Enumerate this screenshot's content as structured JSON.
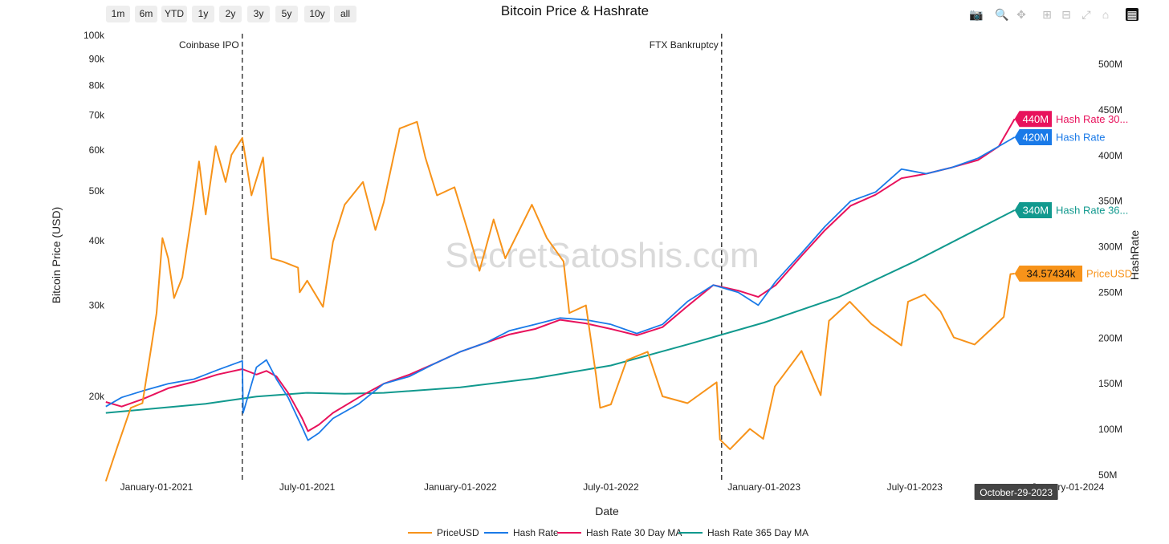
{
  "range_buttons": [
    "1m",
    "6m",
    "YTD",
    "1y",
    "2y",
    "3y",
    "5y",
    "10y",
    "all"
  ],
  "modebar_icons": [
    "camera-icon",
    "zoom-icon",
    "pan-icon",
    "zoom-in-icon",
    "zoom-out-icon",
    "autoscale-icon",
    "home-icon",
    "plotly-logo-icon"
  ],
  "watermark": "SecretSatoshis.com",
  "hover_date": "October-29-2023",
  "chart_data": {
    "type": "line",
    "title": "Bitcoin Price & Hashrate",
    "xlabel": "Date",
    "ylabel": "Bitcoin Price (USD)",
    "y2label": "HashRate",
    "y_scale": "log",
    "x_ticks": [
      "2021-01-01",
      "2021-07-01",
      "2022-01-01",
      "2022-07-01",
      "2023-01-01",
      "2023-07-01",
      "2024-01-01"
    ],
    "x_tick_labels": [
      "January-01-2021",
      "July-01-2021",
      "January-01-2022",
      "July-01-2022",
      "January-01-2023",
      "July-01-2023",
      "January-01-2024"
    ],
    "y_ticks": [
      20000,
      30000,
      40000,
      50000,
      60000,
      70000,
      80000,
      90000,
      100000
    ],
    "y_tick_labels": [
      "20k",
      "30k",
      "40k",
      "50k",
      "60k",
      "70k",
      "80k",
      "90k",
      "100k"
    ],
    "y2_ticks": [
      50,
      100,
      150,
      200,
      250,
      300,
      350,
      400,
      450,
      500
    ],
    "y2_tick_labels": [
      "50M",
      "100M",
      "150M",
      "200M",
      "250M",
      "300M",
      "350M",
      "400M",
      "450M",
      "500M"
    ],
    "annotations": [
      {
        "date": "2021-04-14",
        "text": "Coinbase IPO"
      },
      {
        "date": "2022-11-11",
        "text": "FTX Bankruptcy"
      }
    ],
    "series": [
      {
        "name": "PriceUSD",
        "color": "#f7931a",
        "axis": "y",
        "points": [
          [
            "2020-11-01",
            13700
          ],
          [
            "2020-11-15",
            16000
          ],
          [
            "2020-12-01",
            19000
          ],
          [
            "2020-12-15",
            19400
          ],
          [
            "2020-12-25",
            24500
          ],
          [
            "2021-01-01",
            29000
          ],
          [
            "2021-01-08",
            40500
          ],
          [
            "2021-01-15",
            37000
          ],
          [
            "2021-01-22",
            31000
          ],
          [
            "2021-02-01",
            34000
          ],
          [
            "2021-02-15",
            48000
          ],
          [
            "2021-02-21",
            57000
          ],
          [
            "2021-03-01",
            45000
          ],
          [
            "2021-03-13",
            61000
          ],
          [
            "2021-03-25",
            52000
          ],
          [
            "2021-04-01",
            58700
          ],
          [
            "2021-04-14",
            63300
          ],
          [
            "2021-04-25",
            49000
          ],
          [
            "2021-05-09",
            58000
          ],
          [
            "2021-05-19",
            37000
          ],
          [
            "2021-06-01",
            36500
          ],
          [
            "2021-06-20",
            35500
          ],
          [
            "2021-06-22",
            31800
          ],
          [
            "2021-07-01",
            33500
          ],
          [
            "2021-07-20",
            29800
          ],
          [
            "2021-08-01",
            39800
          ],
          [
            "2021-08-15",
            47000
          ],
          [
            "2021-09-06",
            52000
          ],
          [
            "2021-09-21",
            42000
          ],
          [
            "2021-10-01",
            47500
          ],
          [
            "2021-10-20",
            66000
          ],
          [
            "2021-11-10",
            68000
          ],
          [
            "2021-11-20",
            58000
          ],
          [
            "2021-12-04",
            49000
          ],
          [
            "2021-12-25",
            50800
          ],
          [
            "2022-01-10",
            41800
          ],
          [
            "2022-01-24",
            35000
          ],
          [
            "2022-02-10",
            44000
          ],
          [
            "2022-02-24",
            37000
          ],
          [
            "2022-03-28",
            47000
          ],
          [
            "2022-04-15",
            40500
          ],
          [
            "2022-05-05",
            36500
          ],
          [
            "2022-05-12",
            29000
          ],
          [
            "2022-06-01",
            30000
          ],
          [
            "2022-06-13",
            22000
          ],
          [
            "2022-06-18",
            19000
          ],
          [
            "2022-07-01",
            19300
          ],
          [
            "2022-07-20",
            23500
          ],
          [
            "2022-08-14",
            24400
          ],
          [
            "2022-09-01",
            20000
          ],
          [
            "2022-10-01",
            19400
          ],
          [
            "2022-11-05",
            21300
          ],
          [
            "2022-11-09",
            16500
          ],
          [
            "2022-11-21",
            15800
          ],
          [
            "2022-12-15",
            17300
          ],
          [
            "2022-12-31",
            16550
          ],
          [
            "2023-01-14",
            20900
          ],
          [
            "2023-02-15",
            24500
          ],
          [
            "2023-03-10",
            20100
          ],
          [
            "2023-03-20",
            28000
          ],
          [
            "2023-04-14",
            30500
          ],
          [
            "2023-05-10",
            27600
          ],
          [
            "2023-06-15",
            25100
          ],
          [
            "2023-06-23",
            30500
          ],
          [
            "2023-07-13",
            31500
          ],
          [
            "2023-08-01",
            29200
          ],
          [
            "2023-08-17",
            26000
          ],
          [
            "2023-09-11",
            25200
          ],
          [
            "2023-10-01",
            27000
          ],
          [
            "2023-10-16",
            28500
          ],
          [
            "2023-10-24",
            34500
          ],
          [
            "2023-10-29",
            34574
          ]
        ]
      },
      {
        "name": "Hash Rate",
        "color": "#1a7ae8",
        "axis": "y2",
        "points": [
          [
            "2020-11-01",
            125
          ],
          [
            "2020-11-20",
            135
          ],
          [
            "2020-12-15",
            142
          ],
          [
            "2021-01-15",
            150
          ],
          [
            "2021-02-15",
            155
          ],
          [
            "2021-03-15",
            165
          ],
          [
            "2021-04-14",
            175
          ],
          [
            "2021-04-15",
            118
          ],
          [
            "2021-05-01",
            168
          ],
          [
            "2021-05-13",
            176
          ],
          [
            "2021-05-25",
            155
          ],
          [
            "2021-06-08",
            135
          ],
          [
            "2021-06-25",
            102
          ],
          [
            "2021-07-02",
            88
          ],
          [
            "2021-07-15",
            96
          ],
          [
            "2021-08-01",
            112
          ],
          [
            "2021-09-01",
            128
          ],
          [
            "2021-10-01",
            150
          ],
          [
            "2021-11-01",
            158
          ],
          [
            "2021-12-01",
            172
          ],
          [
            "2022-01-01",
            185
          ],
          [
            "2022-02-01",
            195
          ],
          [
            "2022-03-01",
            208
          ],
          [
            "2022-04-01",
            215
          ],
          [
            "2022-05-01",
            222
          ],
          [
            "2022-06-01",
            220
          ],
          [
            "2022-07-01",
            215
          ],
          [
            "2022-08-01",
            205
          ],
          [
            "2022-09-01",
            215
          ],
          [
            "2022-10-01",
            240
          ],
          [
            "2022-11-01",
            258
          ],
          [
            "2022-12-01",
            250
          ],
          [
            "2022-12-25",
            236
          ],
          [
            "2023-01-15",
            262
          ],
          [
            "2023-02-15",
            293
          ],
          [
            "2023-03-15",
            322
          ],
          [
            "2023-04-15",
            350
          ],
          [
            "2023-05-15",
            360
          ],
          [
            "2023-06-15",
            385
          ],
          [
            "2023-07-15",
            380
          ],
          [
            "2023-08-15",
            387
          ],
          [
            "2023-09-15",
            397
          ],
          [
            "2023-10-10",
            410
          ],
          [
            "2023-10-29",
            420
          ]
        ]
      },
      {
        "name": "Hash Rate 30 Day MA",
        "color": "#e8125c",
        "axis": "y2",
        "points": [
          [
            "2020-11-01",
            130
          ],
          [
            "2020-11-20",
            125
          ],
          [
            "2020-12-15",
            133
          ],
          [
            "2021-01-15",
            145
          ],
          [
            "2021-02-15",
            152
          ],
          [
            "2021-03-15",
            160
          ],
          [
            "2021-04-14",
            166
          ],
          [
            "2021-05-01",
            160
          ],
          [
            "2021-05-13",
            164
          ],
          [
            "2021-05-25",
            158
          ],
          [
            "2021-06-08",
            140
          ],
          [
            "2021-06-25",
            112
          ],
          [
            "2021-07-02",
            98
          ],
          [
            "2021-07-15",
            105
          ],
          [
            "2021-08-01",
            118
          ],
          [
            "2021-09-01",
            135
          ],
          [
            "2021-10-01",
            150
          ],
          [
            "2021-11-01",
            160
          ],
          [
            "2021-12-01",
            172
          ],
          [
            "2022-01-01",
            185
          ],
          [
            "2022-02-01",
            195
          ],
          [
            "2022-03-01",
            204
          ],
          [
            "2022-04-01",
            210
          ],
          [
            "2022-05-01",
            220
          ],
          [
            "2022-06-01",
            216
          ],
          [
            "2022-07-01",
            210
          ],
          [
            "2022-08-01",
            203
          ],
          [
            "2022-09-01",
            212
          ],
          [
            "2022-10-01",
            235
          ],
          [
            "2022-11-01",
            258
          ],
          [
            "2022-12-01",
            252
          ],
          [
            "2022-12-25",
            245
          ],
          [
            "2023-01-15",
            258
          ],
          [
            "2023-02-15",
            290
          ],
          [
            "2023-03-15",
            318
          ],
          [
            "2023-04-15",
            345
          ],
          [
            "2023-05-15",
            357
          ],
          [
            "2023-06-15",
            375
          ],
          [
            "2023-07-15",
            380
          ],
          [
            "2023-08-15",
            387
          ],
          [
            "2023-09-15",
            395
          ],
          [
            "2023-10-10",
            410
          ],
          [
            "2023-10-29",
            440
          ]
        ]
      },
      {
        "name": "Hash Rate 365 Day MA",
        "color": "#11998e",
        "axis": "y2",
        "points": [
          [
            "2020-11-01",
            118
          ],
          [
            "2021-01-01",
            123
          ],
          [
            "2021-03-01",
            128
          ],
          [
            "2021-05-01",
            136
          ],
          [
            "2021-07-01",
            140
          ],
          [
            "2021-08-15",
            139
          ],
          [
            "2021-10-01",
            140
          ],
          [
            "2022-01-01",
            146
          ],
          [
            "2022-04-01",
            156
          ],
          [
            "2022-07-01",
            170
          ],
          [
            "2022-10-01",
            193
          ],
          [
            "2023-01-01",
            217
          ],
          [
            "2023-04-01",
            245
          ],
          [
            "2023-07-01",
            284
          ],
          [
            "2023-09-01",
            313
          ],
          [
            "2023-10-29",
            340
          ]
        ]
      }
    ],
    "end_labels": [
      {
        "value": "440M",
        "text": "Hash Rate 30...",
        "color": "#e8125c",
        "at": 440
      },
      {
        "value": "420M",
        "text": "Hash Rate",
        "color": "#1a7ae8",
        "at": 420
      },
      {
        "value": "340M",
        "text": "Hash Rate 36...",
        "color": "#11998e",
        "at": 340
      },
      {
        "value": "34.57434k",
        "text": "PriceUSD",
        "color": "#f7931a",
        "at": 34574
      }
    ],
    "legend_position": "bottom"
  }
}
